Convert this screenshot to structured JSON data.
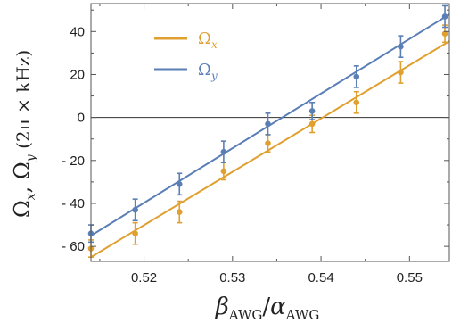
{
  "chart_data": {
    "type": "scatter",
    "xlabel": "β_AWG / α_AWG",
    "ylabel": "Ω_x, Ω_y  (2π × kHz)",
    "xlim": [
      0.514,
      0.5545
    ],
    "ylim": [
      -67,
      53
    ],
    "xticks": [
      0.52,
      0.53,
      0.54,
      0.55
    ],
    "yticks": [
      -60,
      -40,
      -20,
      0,
      20,
      40
    ],
    "xtick_labels": [
      "0.52",
      "0.53",
      "0.54",
      "0.55"
    ],
    "ytick_labels": [
      "- 60",
      "- 40",
      "- 20",
      "0",
      "20",
      "40"
    ],
    "grid": false,
    "legend_position": "top-left",
    "zero_line": true,
    "series": [
      {
        "name": "Ω_x",
        "color": "#e0a030",
        "x": [
          0.514,
          0.519,
          0.524,
          0.529,
          0.534,
          0.539,
          0.544,
          0.549,
          0.554
        ],
        "y": [
          -61,
          -54,
          -44,
          -25,
          -12,
          -3,
          7,
          21,
          39
        ],
        "err": [
          4,
          5,
          5,
          4,
          4,
          4,
          5,
          5,
          4
        ],
        "fit": {
          "x": [
            0.514,
            0.5545
          ],
          "y": [
            -65,
            35.5
          ]
        }
      },
      {
        "name": "Ω_y",
        "color": "#5a7eb6",
        "x": [
          0.514,
          0.519,
          0.524,
          0.529,
          0.534,
          0.539,
          0.544,
          0.549,
          0.554
        ],
        "y": [
          -54,
          -43,
          -31,
          -16,
          -3,
          3,
          19,
          33,
          47
        ],
        "err": [
          4,
          5,
          5,
          5,
          5,
          4,
          5,
          5,
          5
        ],
        "fit": {
          "x": [
            0.514,
            0.5545
          ],
          "y": [
            -55,
            48
          ]
        }
      }
    ]
  }
}
